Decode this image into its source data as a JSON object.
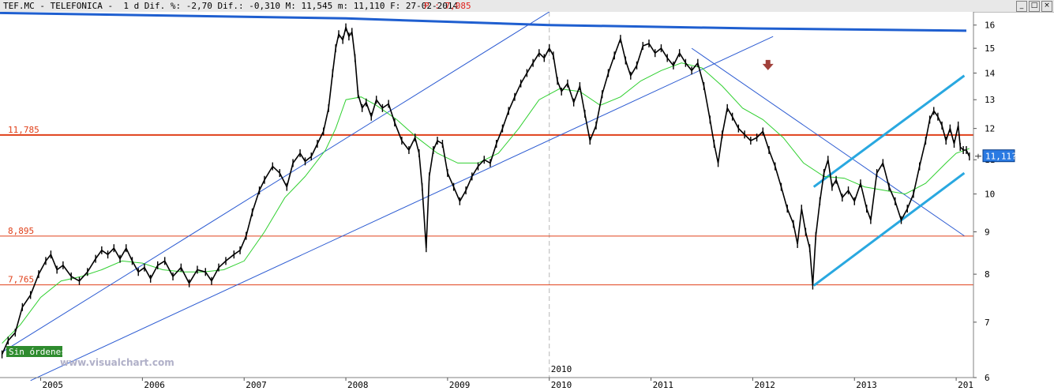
{
  "header": {
    "text": "TEF.MC - TELEFONICA -  1 d Dif. %: -2,70 Dif.: -0,310 M: 11,545 m: 11,110 F: 27-02-2014",
    "p_text": "P : 7,085"
  },
  "window_buttons": [
    "_",
    "□",
    "×"
  ],
  "orders_badge": "Sin órdenes",
  "watermark": "www.visualchart.com",
  "colors": {
    "price": "#000000",
    "moving_average": "#30d030",
    "horizontal_levels": "#e0401a",
    "top_line": "#1f5fd0",
    "trend_lines": "#2c5bd2",
    "channel": "#29a8e0",
    "arrow": "#a0403a",
    "last_price_box": "#2a7ae2",
    "orders_badge": "#2e8b2e"
  },
  "chart_data": {
    "type": "line",
    "symbol": "TEF.MC",
    "y_scale": "log",
    "ylim": [
      6,
      16.6
    ],
    "y_ticks": [
      6,
      7,
      8,
      9,
      10,
      11,
      12,
      13,
      14,
      15,
      16
    ],
    "xlim": [
      2004.6,
      2014.17
    ],
    "x_ticks": [
      "2005",
      "2006",
      "2007",
      "2008",
      "2009",
      "2010",
      "2011",
      "2012",
      "2013",
      "201"
    ],
    "x_tick_positions": [
      2005,
      2006,
      2007,
      2008,
      2009,
      2010,
      2011,
      2012,
      2013,
      2014
    ],
    "vertical_marker": {
      "x": 2010.0,
      "label": "2010"
    },
    "last_price": {
      "label": "11,11?",
      "value": 11.11
    },
    "horizontal_levels": [
      {
        "value": 11.785,
        "label": "11,785"
      },
      {
        "value": 8.895,
        "label": "8,895"
      },
      {
        "value": 7.765,
        "label": "7,765"
      }
    ],
    "top_line": [
      {
        "x": 2004.6,
        "y": 16.55
      },
      {
        "x": 2008.0,
        "y": 16.3
      },
      {
        "x": 2010.0,
        "y": 16.0
      },
      {
        "x": 2012.0,
        "y": 15.85
      },
      {
        "x": 2014.1,
        "y": 15.75
      }
    ],
    "trend_lines": [
      {
        "from": {
          "x": 2004.63,
          "y": 6.45
        },
        "to": {
          "x": 2010.0,
          "y": 16.6
        }
      },
      {
        "from": {
          "x": 2004.9,
          "y": 5.95
        },
        "to": {
          "x": 2012.2,
          "y": 15.5
        }
      },
      {
        "from": {
          "x": 2011.4,
          "y": 15.0
        },
        "to": {
          "x": 2014.08,
          "y": 8.9
        }
      }
    ],
    "channel": [
      {
        "from": {
          "x": 2012.6,
          "y": 10.2
        },
        "to": {
          "x": 2014.08,
          "y": 13.9
        }
      },
      {
        "from": {
          "x": 2012.6,
          "y": 7.75
        },
        "to": {
          "x": 2014.08,
          "y": 10.6
        }
      }
    ],
    "arrow": {
      "x": 2012.15,
      "y": 14.3,
      "direction": "down"
    },
    "price_series": [
      [
        2004.62,
        6.4
      ],
      [
        2004.68,
        6.65
      ],
      [
        2004.75,
        6.8
      ],
      [
        2004.82,
        7.3
      ],
      [
        2004.9,
        7.55
      ],
      [
        2004.98,
        8.0
      ],
      [
        2005.05,
        8.3
      ],
      [
        2005.1,
        8.45
      ],
      [
        2005.16,
        8.1
      ],
      [
        2005.22,
        8.2
      ],
      [
        2005.3,
        7.95
      ],
      [
        2005.38,
        7.85
      ],
      [
        2005.46,
        8.05
      ],
      [
        2005.54,
        8.35
      ],
      [
        2005.6,
        8.55
      ],
      [
        2005.66,
        8.45
      ],
      [
        2005.72,
        8.6
      ],
      [
        2005.78,
        8.35
      ],
      [
        2005.84,
        8.6
      ],
      [
        2005.9,
        8.3
      ],
      [
        2005.96,
        8.05
      ],
      [
        2006.02,
        8.15
      ],
      [
        2006.08,
        7.9
      ],
      [
        2006.15,
        8.2
      ],
      [
        2006.22,
        8.3
      ],
      [
        2006.3,
        7.95
      ],
      [
        2006.38,
        8.15
      ],
      [
        2006.46,
        7.8
      ],
      [
        2006.54,
        8.1
      ],
      [
        2006.62,
        8.05
      ],
      [
        2006.68,
        7.85
      ],
      [
        2006.75,
        8.15
      ],
      [
        2006.82,
        8.3
      ],
      [
        2006.9,
        8.45
      ],
      [
        2006.96,
        8.55
      ],
      [
        2007.02,
        8.9
      ],
      [
        2007.08,
        9.5
      ],
      [
        2007.15,
        10.1
      ],
      [
        2007.2,
        10.4
      ],
      [
        2007.28,
        10.8
      ],
      [
        2007.35,
        10.6
      ],
      [
        2007.42,
        10.2
      ],
      [
        2007.48,
        10.9
      ],
      [
        2007.55,
        11.2
      ],
      [
        2007.6,
        10.95
      ],
      [
        2007.66,
        11.1
      ],
      [
        2007.72,
        11.5
      ],
      [
        2007.78,
        11.9
      ],
      [
        2007.83,
        12.7
      ],
      [
        2007.87,
        14.0
      ],
      [
        2007.9,
        15.0
      ],
      [
        2007.93,
        15.6
      ],
      [
        2007.97,
        15.35
      ],
      [
        2008.0,
        15.9
      ],
      [
        2008.03,
        15.5
      ],
      [
        2008.06,
        15.7
      ],
      [
        2008.09,
        14.6
      ],
      [
        2008.12,
        13.2
      ],
      [
        2008.16,
        12.7
      ],
      [
        2008.2,
        12.9
      ],
      [
        2008.25,
        12.4
      ],
      [
        2008.3,
        13.0
      ],
      [
        2008.36,
        12.7
      ],
      [
        2008.42,
        12.85
      ],
      [
        2008.48,
        12.2
      ],
      [
        2008.55,
        11.6
      ],
      [
        2008.62,
        11.3
      ],
      [
        2008.68,
        11.7
      ],
      [
        2008.72,
        11.2
      ],
      [
        2008.75,
        10.2
      ],
      [
        2008.79,
        8.6
      ],
      [
        2008.82,
        10.5
      ],
      [
        2008.86,
        11.3
      ],
      [
        2008.9,
        11.6
      ],
      [
        2008.95,
        11.5
      ],
      [
        2009.0,
        10.6
      ],
      [
        2009.06,
        10.2
      ],
      [
        2009.12,
        9.8
      ],
      [
        2009.18,
        10.1
      ],
      [
        2009.24,
        10.5
      ],
      [
        2009.3,
        10.8
      ],
      [
        2009.36,
        11.0
      ],
      [
        2009.42,
        10.9
      ],
      [
        2009.48,
        11.5
      ],
      [
        2009.54,
        12.0
      ],
      [
        2009.6,
        12.6
      ],
      [
        2009.66,
        13.1
      ],
      [
        2009.72,
        13.6
      ],
      [
        2009.78,
        14.0
      ],
      [
        2009.84,
        14.4
      ],
      [
        2009.9,
        14.8
      ],
      [
        2009.95,
        14.6
      ],
      [
        2010.0,
        15.0
      ],
      [
        2010.04,
        14.7
      ],
      [
        2010.08,
        13.7
      ],
      [
        2010.12,
        13.3
      ],
      [
        2010.18,
        13.6
      ],
      [
        2010.24,
        12.9
      ],
      [
        2010.3,
        13.5
      ],
      [
        2010.35,
        12.5
      ],
      [
        2010.4,
        11.6
      ],
      [
        2010.46,
        12.1
      ],
      [
        2010.52,
        13.2
      ],
      [
        2010.58,
        14.0
      ],
      [
        2010.64,
        14.7
      ],
      [
        2010.7,
        15.4
      ],
      [
        2010.75,
        14.5
      ],
      [
        2010.8,
        13.9
      ],
      [
        2010.86,
        14.3
      ],
      [
        2010.92,
        15.1
      ],
      [
        2010.98,
        15.2
      ],
      [
        2011.04,
        14.8
      ],
      [
        2011.1,
        15.0
      ],
      [
        2011.16,
        14.6
      ],
      [
        2011.22,
        14.3
      ],
      [
        2011.28,
        14.8
      ],
      [
        2011.34,
        14.4
      ],
      [
        2011.4,
        14.1
      ],
      [
        2011.46,
        14.4
      ],
      [
        2011.52,
        13.5
      ],
      [
        2011.58,
        12.3
      ],
      [
        2011.62,
        11.5
      ],
      [
        2011.66,
        10.9
      ],
      [
        2011.7,
        11.8
      ],
      [
        2011.75,
        12.7
      ],
      [
        2011.8,
        12.4
      ],
      [
        2011.86,
        12.0
      ],
      [
        2011.92,
        11.8
      ],
      [
        2011.98,
        11.6
      ],
      [
        2012.04,
        11.7
      ],
      [
        2012.1,
        11.9
      ],
      [
        2012.16,
        11.3
      ],
      [
        2012.22,
        10.8
      ],
      [
        2012.28,
        10.2
      ],
      [
        2012.34,
        9.6
      ],
      [
        2012.4,
        9.2
      ],
      [
        2012.44,
        8.7
      ],
      [
        2012.48,
        9.6
      ],
      [
        2012.52,
        9.0
      ],
      [
        2012.56,
        8.6
      ],
      [
        2012.59,
        7.75
      ],
      [
        2012.62,
        8.9
      ],
      [
        2012.66,
        9.8
      ],
      [
        2012.7,
        10.6
      ],
      [
        2012.74,
        11.0
      ],
      [
        2012.78,
        10.2
      ],
      [
        2012.82,
        10.4
      ],
      [
        2012.88,
        9.9
      ],
      [
        2012.94,
        10.1
      ],
      [
        2013.0,
        9.8
      ],
      [
        2013.06,
        10.3
      ],
      [
        2013.12,
        9.6
      ],
      [
        2013.16,
        9.3
      ],
      [
        2013.22,
        10.6
      ],
      [
        2013.28,
        10.9
      ],
      [
        2013.34,
        10.2
      ],
      [
        2013.4,
        9.8
      ],
      [
        2013.46,
        9.3
      ],
      [
        2013.52,
        9.6
      ],
      [
        2013.58,
        10.0
      ],
      [
        2013.64,
        10.8
      ],
      [
        2013.7,
        11.6
      ],
      [
        2013.74,
        12.3
      ],
      [
        2013.78,
        12.6
      ],
      [
        2013.82,
        12.4
      ],
      [
        2013.86,
        12.1
      ],
      [
        2013.9,
        11.6
      ],
      [
        2013.94,
        12.0
      ],
      [
        2013.98,
        11.5
      ],
      [
        2014.02,
        12.1
      ],
      [
        2014.04,
        11.4
      ],
      [
        2014.07,
        11.3
      ],
      [
        2014.1,
        11.3
      ],
      [
        2014.13,
        11.1
      ]
    ],
    "moving_average": [
      [
        2004.62,
        6.6
      ],
      [
        2004.8,
        6.95
      ],
      [
        2005.0,
        7.5
      ],
      [
        2005.2,
        7.85
      ],
      [
        2005.4,
        7.95
      ],
      [
        2005.6,
        8.1
      ],
      [
        2005.8,
        8.3
      ],
      [
        2006.0,
        8.25
      ],
      [
        2006.2,
        8.1
      ],
      [
        2006.4,
        8.05
      ],
      [
        2006.6,
        8.05
      ],
      [
        2006.8,
        8.1
      ],
      [
        2007.0,
        8.3
      ],
      [
        2007.2,
        9.0
      ],
      [
        2007.4,
        9.9
      ],
      [
        2007.6,
        10.5
      ],
      [
        2007.8,
        11.3
      ],
      [
        2007.9,
        12.0
      ],
      [
        2008.0,
        13.0
      ],
      [
        2008.15,
        13.1
      ],
      [
        2008.3,
        12.8
      ],
      [
        2008.5,
        12.3
      ],
      [
        2008.7,
        11.7
      ],
      [
        2008.9,
        11.2
      ],
      [
        2009.1,
        10.9
      ],
      [
        2009.3,
        10.9
      ],
      [
        2009.5,
        11.2
      ],
      [
        2009.7,
        12.0
      ],
      [
        2009.9,
        13.0
      ],
      [
        2010.1,
        13.4
      ],
      [
        2010.3,
        13.3
      ],
      [
        2010.5,
        12.8
      ],
      [
        2010.7,
        13.1
      ],
      [
        2010.9,
        13.7
      ],
      [
        2011.1,
        14.1
      ],
      [
        2011.3,
        14.4
      ],
      [
        2011.5,
        14.2
      ],
      [
        2011.7,
        13.5
      ],
      [
        2011.9,
        12.7
      ],
      [
        2012.1,
        12.3
      ],
      [
        2012.3,
        11.7
      ],
      [
        2012.5,
        10.9
      ],
      [
        2012.7,
        10.5
      ],
      [
        2012.9,
        10.45
      ],
      [
        2013.1,
        10.2
      ],
      [
        2013.3,
        10.1
      ],
      [
        2013.5,
        10.0
      ],
      [
        2013.7,
        10.3
      ],
      [
        2013.9,
        10.9
      ],
      [
        2014.0,
        11.2
      ],
      [
        2014.13,
        11.35
      ]
    ]
  }
}
